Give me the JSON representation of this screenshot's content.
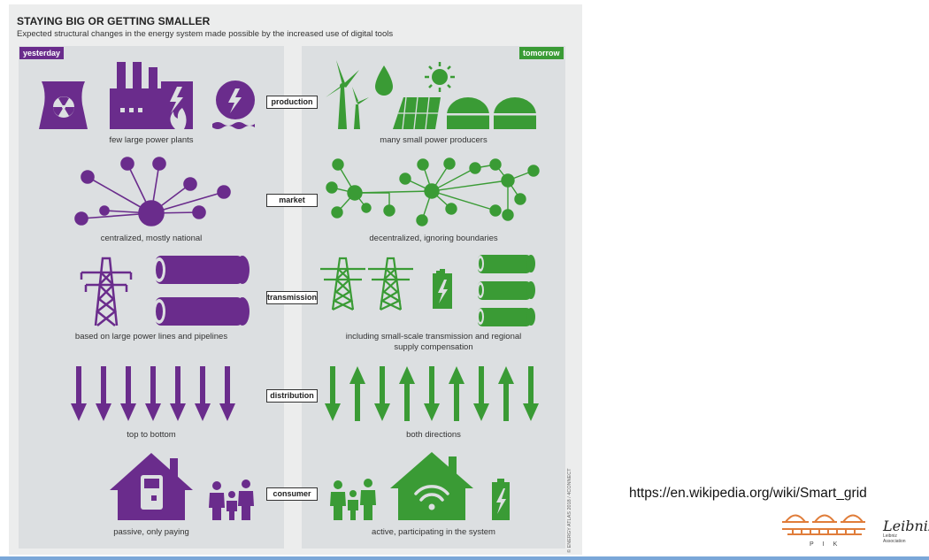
{
  "title": "STAYING BIG OR GETTING SMALLER",
  "subtitle": "Expected structural changes in the energy system made possible by the increased use of digital tools",
  "tags": {
    "yesterday": "yesterday",
    "tomorrow": "tomorrow"
  },
  "categories": [
    "production",
    "market",
    "transmission",
    "distribution",
    "consumer"
  ],
  "captions_left": [
    "few large power plants",
    "centralized, mostly national",
    "based on large power lines and pipelines",
    "top to bottom",
    "passive, only paying"
  ],
  "captions_right": [
    "many small power producers",
    "decentralized, ignoring boundaries",
    "including small-scale transmission and regional supply compensation",
    "both directions",
    "active, participating in the system"
  ],
  "credit": "© ENERGY ATLAS 2018 / 4CONNECT",
  "url": "https://en.wikipedia.org/wiki/Smart_grid",
  "logos": {
    "pik": "PIK",
    "leibniz": "Leibniz",
    "leibniz_sub": "Leibniz Association"
  },
  "colors": {
    "purple": "#6a2c8c",
    "green": "#3a9b35",
    "panel": "#dcdfe1"
  },
  "icons": [
    "nuclear-plant-icon",
    "power-plant-icon",
    "hydro-plant-icon",
    "wind-turbine-icon",
    "water-drop-icon",
    "sun-icon",
    "solar-panel-icon",
    "biogas-icon",
    "central-network-icon",
    "distributed-network-icon",
    "transmission-tower-icon",
    "pipeline-icon",
    "battery-icon",
    "down-arrow-icon",
    "up-arrow-icon",
    "house-icon",
    "smart-home-icon",
    "family-icon"
  ]
}
